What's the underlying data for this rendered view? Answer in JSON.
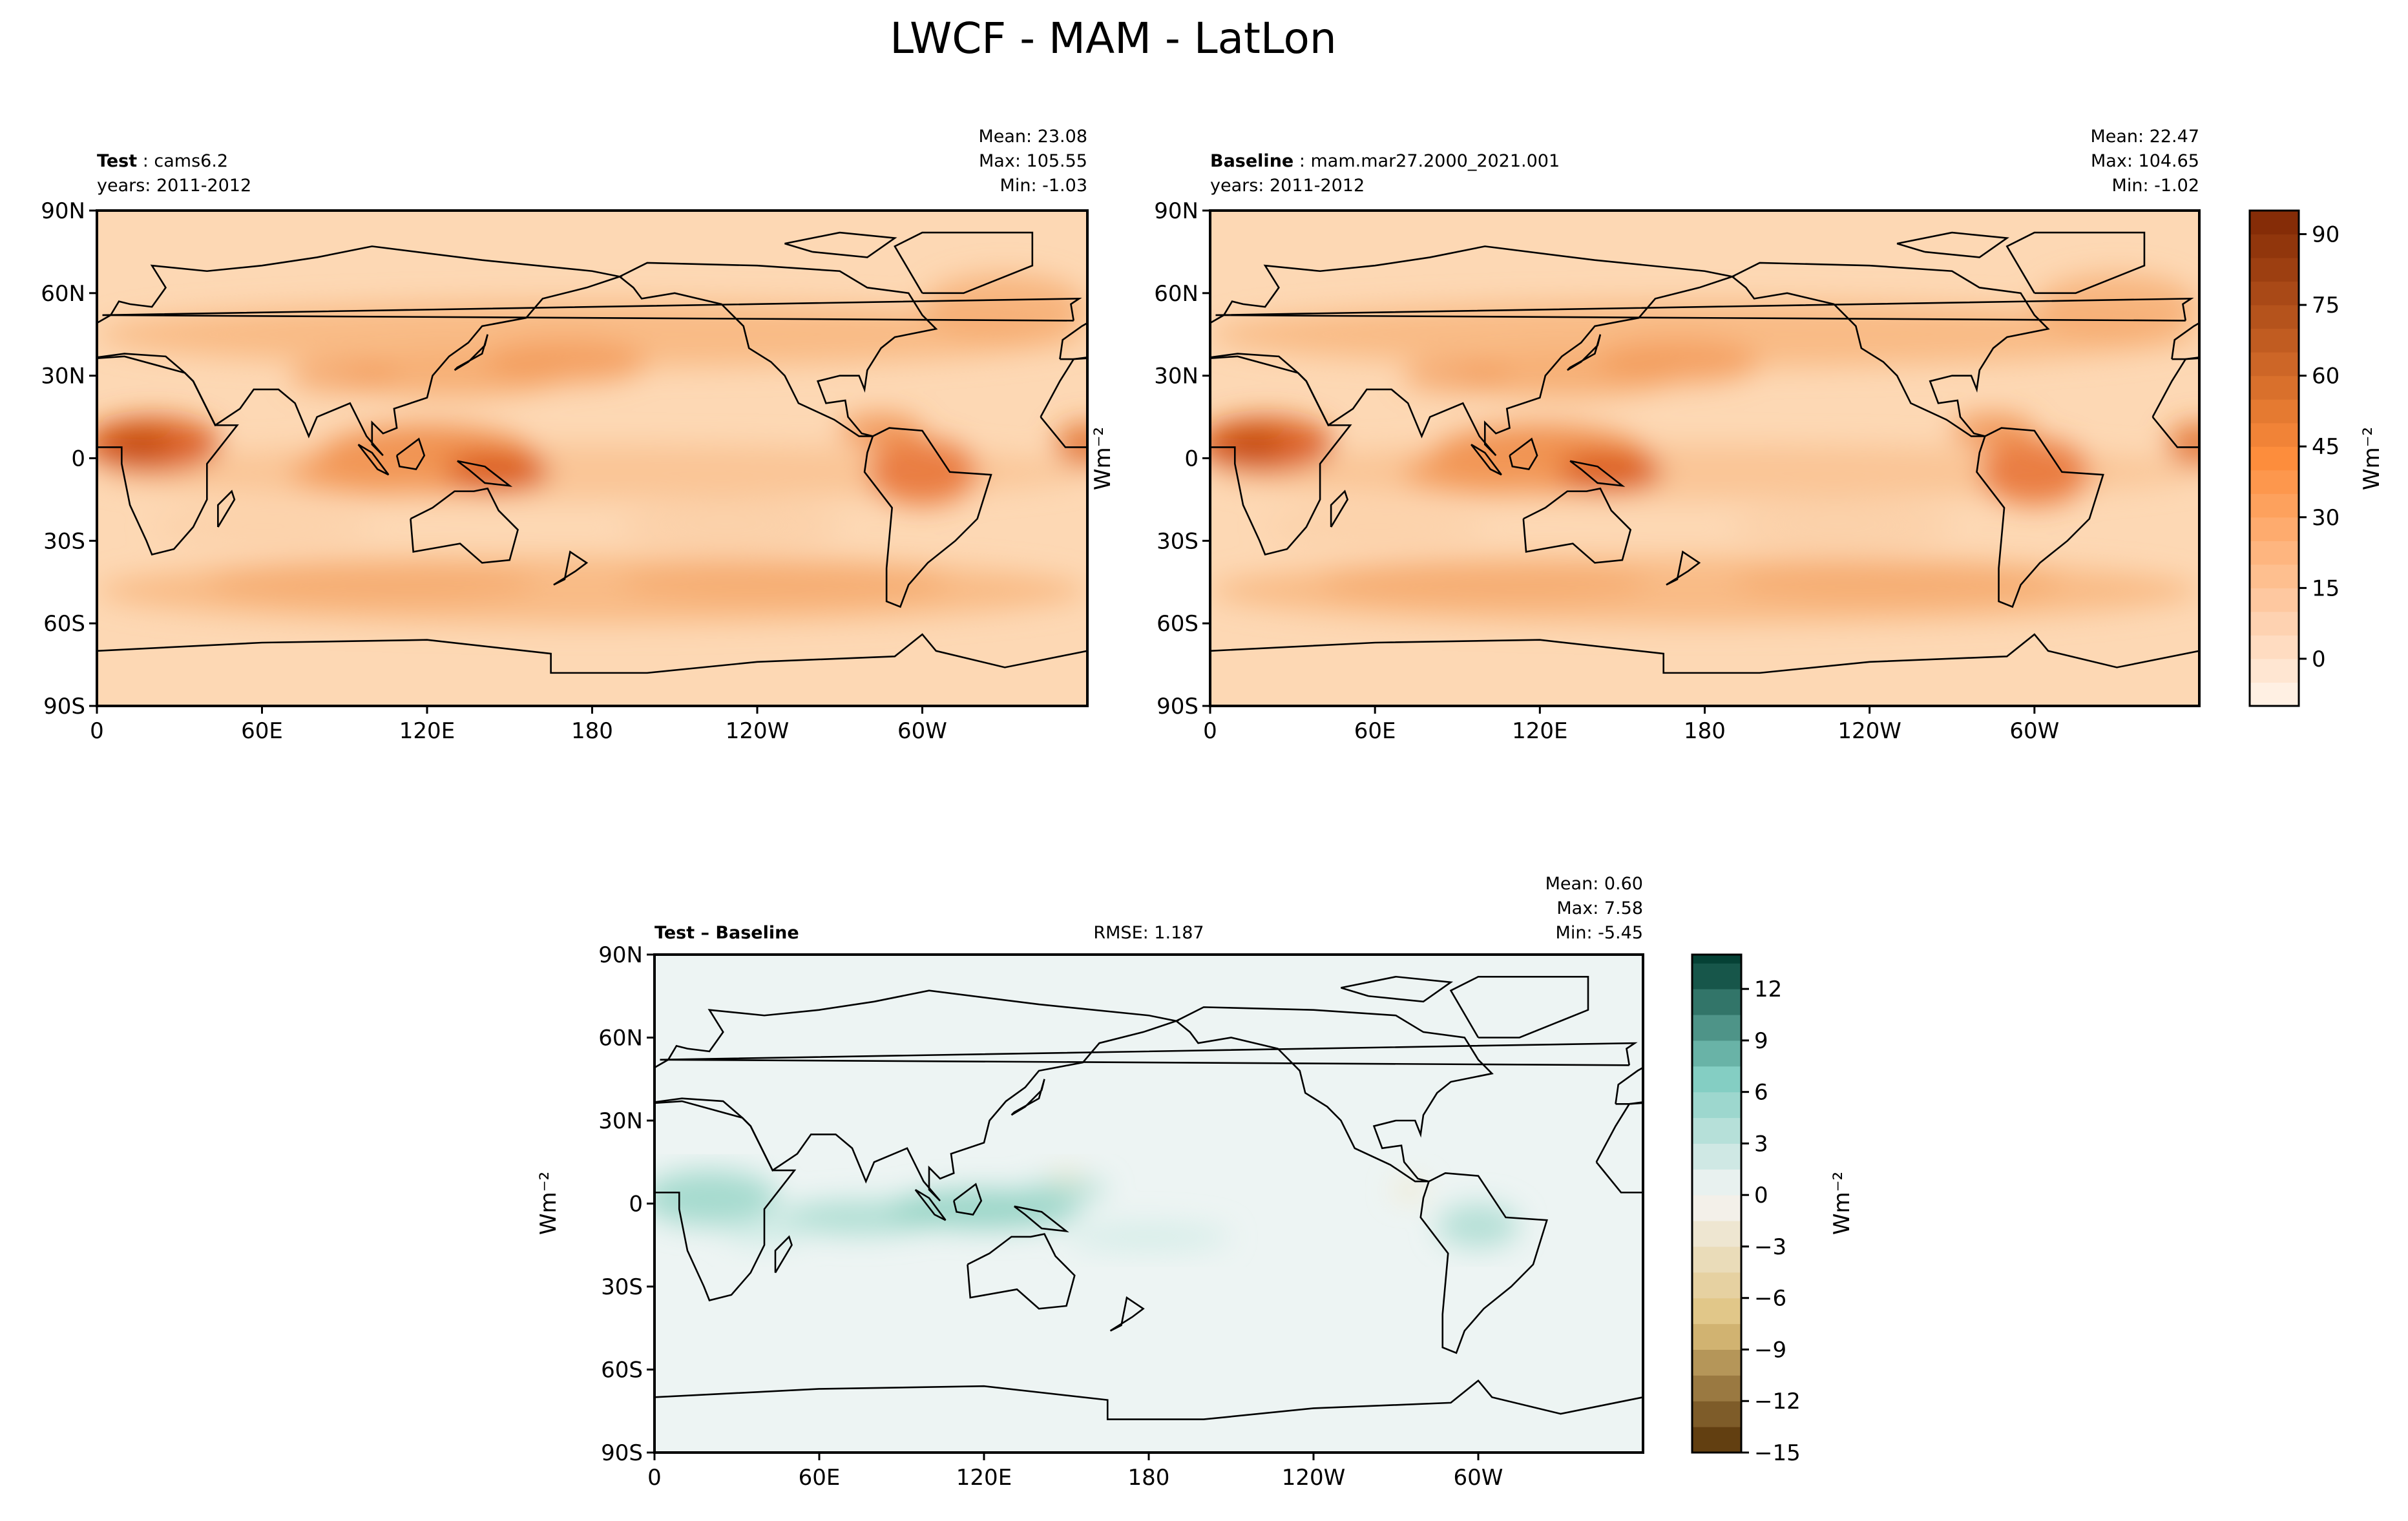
{
  "chart_data": {
    "type": "heatmap",
    "title": "LWCF - MAM - LatLon",
    "x_ticks": [
      "0",
      "60E",
      "120E",
      "180",
      "120W",
      "60W"
    ],
    "y_ticks": [
      "90N",
      "60N",
      "30N",
      "0",
      "30S",
      "60S",
      "90S"
    ],
    "panels": [
      {
        "label_bold": "Test",
        "label_rest": " : cams6.2",
        "years": "years: 2011-2012",
        "mean": "Mean: 23.08",
        "max": "Max: 105.55",
        "min": "Min: -1.03",
        "stats": {
          "mean": 23.08,
          "max": 105.55,
          "min": -1.03
        }
      },
      {
        "label_bold": "Baseline",
        "label_rest": " : mam.mar27.2000_2021.001",
        "years": "years: 2011-2012",
        "mean": "Mean: 22.47",
        "max": "Max: 104.65",
        "min": "Min: -1.02",
        "ylabel": "Wm⁻²",
        "stats": {
          "mean": 22.47,
          "max": 104.65,
          "min": -1.02
        }
      },
      {
        "label_bold": "Test – Baseline",
        "rmse": "RMSE: 1.187",
        "mean": "Mean:  0.60",
        "max": "Max:  7.58",
        "min": "Min: -5.45",
        "ylabel": "Wm⁻²",
        "stats": {
          "mean": 0.6,
          "max": 7.58,
          "min": -5.45,
          "rmse": 1.187
        }
      }
    ],
    "colorbars": [
      {
        "label": "Wm⁻²",
        "ticks": [
          "0",
          "15",
          "30",
          "45",
          "60",
          "75",
          "90"
        ],
        "tick_values": [
          0,
          15,
          30,
          45,
          60,
          75,
          90
        ],
        "range": [
          -10,
          95
        ],
        "step": 5,
        "colormap": "Oranges",
        "low_color": "#fff5eb",
        "high_color": "#7f2704"
      },
      {
        "label": "Wm⁻²",
        "ticks": [
          "12",
          "9",
          "6",
          "3",
          "0",
          "−3",
          "−6",
          "−9",
          "−12",
          "−15"
        ],
        "tick_values": [
          12,
          9,
          6,
          3,
          0,
          -3,
          -6,
          -9,
          -12,
          -15
        ],
        "range": [
          -15,
          14
        ],
        "step": 1.5,
        "colormap": "BrBG",
        "low_color": "#543005",
        "mid_color": "#f5f5f5",
        "high_color": "#003c30"
      }
    ]
  }
}
